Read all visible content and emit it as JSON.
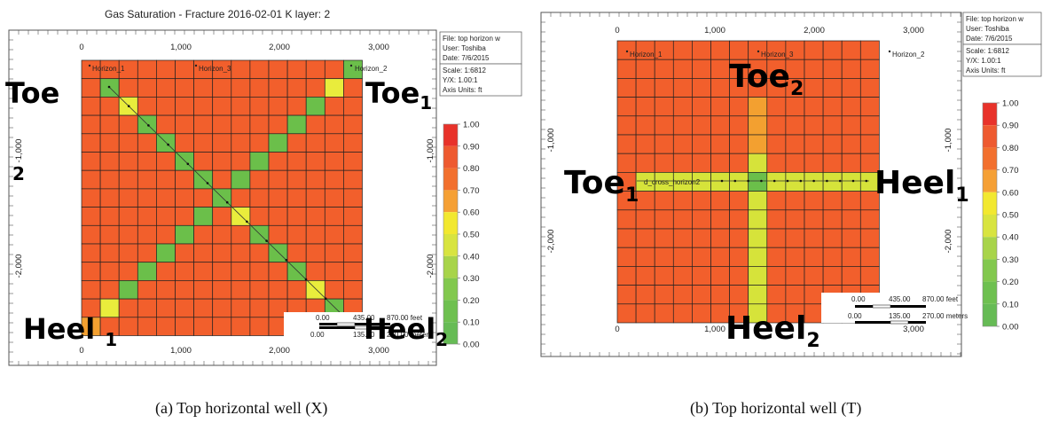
{
  "panel_a": {
    "title": "Gas Saturation - Fracture 2016-02-01     K layer: 2",
    "caption": "(a)   Top horizontal well (X)",
    "x_ticks": [
      "0",
      "1,000",
      "2,000",
      "3,000"
    ],
    "y_ticks_left": [
      "-1,000",
      "-2,000"
    ],
    "y_ticks_right": [
      "-1,000",
      "-2,000"
    ],
    "info": {
      "file": "File: top horizon w",
      "user": "User:  Toshiba",
      "date": "Date: 7/6/2015",
      "scale": "Scale: 1:6812",
      "yx": "Y/X: 1.00:1",
      "units": "Axis Units: ft"
    },
    "horizons": [
      "Horizon_1",
      "Horizon_3",
      "Horizon_2"
    ],
    "labels": {
      "toe": "Toe",
      "toe1_base": "Toe",
      "toe1_sub": "1",
      "heel1_base": "Heel ",
      "heel1_sub": "1",
      "heel2_base": "Heel",
      "heel2_sub": "2",
      "stray": "2"
    },
    "scalebar": {
      "feet": [
        "0.00",
        "435.00",
        "870.00 feet"
      ],
      "meters": [
        "0.00",
        "135.00",
        "270.00 meters"
      ]
    },
    "colorbar_ticks": [
      "1.00",
      "0.90",
      "0.80",
      "0.70",
      "0.60",
      "0.50",
      "0.40",
      "0.30",
      "0.20",
      "0.10",
      "0.00"
    ]
  },
  "panel_b": {
    "caption": "(b)   Top horizontal well (T)",
    "x_ticks": [
      "0",
      "1,000",
      "2,000",
      "3,000"
    ],
    "y_ticks_left": [
      "-1,000",
      "-2,000"
    ],
    "y_ticks_right": [
      "-1,000",
      "-2,000"
    ],
    "info": {
      "file": "File: top horizon w",
      "user": "User:  Toshiba",
      "date": "Date: 7/6/2015",
      "scale": "Scale: 1:6812",
      "yx": "Y/X: 1.00:1",
      "units": "Axis Units: ft"
    },
    "horizons": [
      "Horizon_1",
      "Horizon_3",
      "Horizon_2"
    ],
    "well_label": "d_cross_horizon2",
    "labels": {
      "toe2_base": "Toe",
      "toe2_sub": "2",
      "toe1_base": "Toe",
      "toe1_sub": "1",
      "heel1_base": "Heel",
      "heel1_sub": "1",
      "heel2_base": "Heel",
      "heel2_sub": "2"
    },
    "scalebar": {
      "feet": [
        "0.00",
        "435.00",
        "870.00 feet"
      ],
      "meters": [
        "0.00",
        "135.00",
        "270.00 meters"
      ]
    },
    "colorbar_ticks": [
      "1.00",
      "0.90",
      "0.80",
      "0.70",
      "0.60",
      "0.50",
      "0.40",
      "0.30",
      "0.20",
      "0.10",
      "0.00"
    ]
  },
  "colors": {
    "c10": "#e8322a",
    "c90": "#ee5a30",
    "c80": "#f2702e",
    "c70": "#f5a035",
    "c60": "#f2e830",
    "c50": "#d8e440",
    "c40": "#a8d44a",
    "c30": "#82c84e",
    "c20": "#6ec050",
    "c10b": "#66bb55",
    "c00": "#5cb85c",
    "field": "#f25f2c",
    "x_green": "#6bbf4a",
    "x_yellow": "#e9ec3c",
    "x_orange": "#f3a030",
    "t_yellow": "#d6e33a",
    "t_orange": "#f3a030",
    "t_green": "#6bbf4a"
  }
}
